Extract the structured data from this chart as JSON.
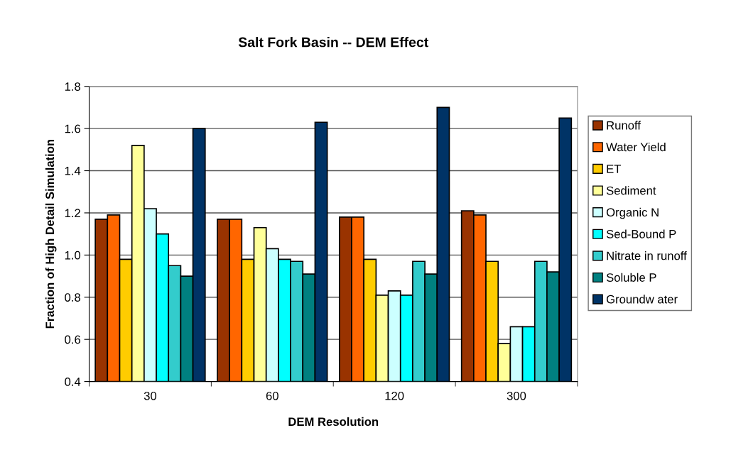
{
  "chart_data": {
    "type": "bar",
    "title": "Salt Fork Basin -- DEM Effect",
    "xlabel": "DEM Resolution",
    "ylabel": "Fraction of High Detail Simulation",
    "categories": [
      "30",
      "60",
      "120",
      "300"
    ],
    "series": [
      {
        "name": "Runoff",
        "color": "#993300",
        "values": [
          1.17,
          1.17,
          1.18,
          1.21
        ]
      },
      {
        "name": "Water Yield",
        "color": "#ff6600",
        "values": [
          1.19,
          1.17,
          1.18,
          1.19
        ]
      },
      {
        "name": "ET",
        "color": "#ffcc00",
        "values": [
          0.98,
          0.98,
          0.98,
          0.97
        ]
      },
      {
        "name": "Sediment",
        "color": "#ffff99",
        "values": [
          1.52,
          1.13,
          0.81,
          0.58
        ]
      },
      {
        "name": "Organic N",
        "color": "#ccffff",
        "values": [
          1.22,
          1.03,
          0.83,
          0.66
        ]
      },
      {
        "name": "Sed-Bound P",
        "color": "#00ffff",
        "values": [
          1.1,
          0.98,
          0.81,
          0.66
        ]
      },
      {
        "name": "Nitrate in runoff",
        "color": "#33cccc",
        "values": [
          0.95,
          0.97,
          0.97,
          0.97
        ]
      },
      {
        "name": "Soluble P",
        "color": "#008080",
        "values": [
          0.9,
          0.91,
          0.91,
          0.92
        ]
      },
      {
        "name": "Groundw ater",
        "color": "#003366",
        "values": [
          1.6,
          1.63,
          1.7,
          1.65
        ]
      }
    ],
    "ylim": [
      0.4,
      1.8
    ],
    "yticks": [
      {
        "value": 0.4,
        "label": "0.4"
      },
      {
        "value": 0.6,
        "label": "0.6"
      },
      {
        "value": 0.8,
        "label": "0.8"
      },
      {
        "value": 1.0,
        "label": "1.0"
      },
      {
        "value": 1.2,
        "label": "1.2"
      },
      {
        "value": 1.4,
        "label": "1.4"
      },
      {
        "value": 1.6,
        "label": "1.6"
      },
      {
        "value": 1.8,
        "label": "1.8"
      }
    ],
    "grid": "y",
    "legend": "right"
  }
}
